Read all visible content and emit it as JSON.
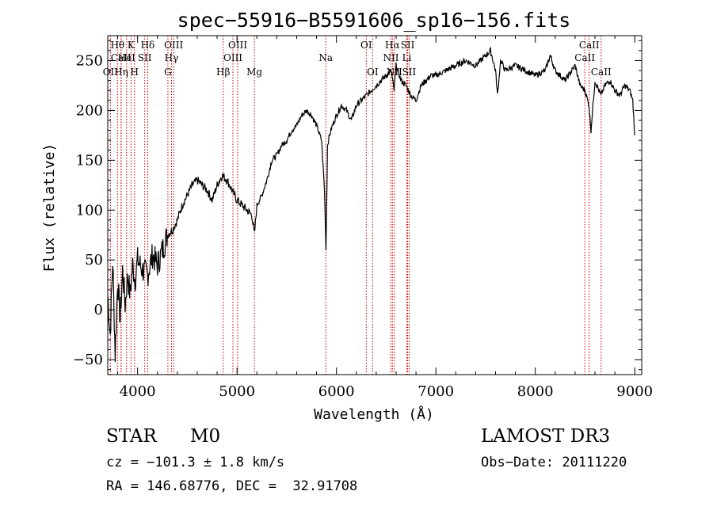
{
  "chart_data": {
    "type": "line",
    "title": "spec−55916−B5591606_sp16−156.fits",
    "xlabel": "Wavelength (Å)",
    "ylabel": "Flux (relative)",
    "xlim": [
      3700,
      9070
    ],
    "ylim": [
      -65,
      275
    ],
    "x_ticks": [
      4000,
      5000,
      6000,
      7000,
      8000,
      9000
    ],
    "y_ticks": [
      -50,
      0,
      50,
      100,
      150,
      200,
      250
    ],
    "series": [
      {
        "name": "flux",
        "x": [
          3700,
          3725,
          3750,
          3775,
          3800,
          3825,
          3850,
          3875,
          3900,
          3925,
          3950,
          3975,
          4000,
          4050,
          4100,
          4150,
          4200,
          4250,
          4300,
          4350,
          4400,
          4450,
          4500,
          4550,
          4600,
          4650,
          4700,
          4750,
          4800,
          4850,
          4900,
          4950,
          5000,
          5050,
          5100,
          5150,
          5175,
          5200,
          5250,
          5300,
          5350,
          5400,
          5450,
          5500,
          5550,
          5600,
          5650,
          5700,
          5750,
          5800,
          5850,
          5880,
          5895,
          5910,
          5930,
          5960,
          6000,
          6050,
          6100,
          6150,
          6200,
          6250,
          6300,
          6350,
          6400,
          6450,
          6500,
          6550,
          6580,
          6600,
          6650,
          6700,
          6750,
          6800,
          6850,
          6900,
          6950,
          7000,
          7100,
          7200,
          7300,
          7400,
          7500,
          7550,
          7600,
          7620,
          7650,
          7700,
          7800,
          7900,
          8000,
          8100,
          8150,
          8200,
          8300,
          8400,
          8450,
          8500,
          8540,
          8560,
          8600,
          8660,
          8700,
          8750,
          8800,
          8850,
          8900,
          8950,
          8980,
          9000
        ],
        "y": [
          15,
          -25,
          50,
          -45,
          30,
          -10,
          40,
          5,
          35,
          15,
          45,
          30,
          50,
          40,
          35,
          55,
          45,
          60,
          75,
          80,
          90,
          105,
          115,
          125,
          130,
          125,
          120,
          110,
          125,
          135,
          130,
          120,
          110,
          105,
          100,
          95,
          75,
          105,
          115,
          130,
          150,
          155,
          165,
          170,
          180,
          185,
          195,
          200,
          195,
          185,
          170,
          120,
          60,
          165,
          175,
          185,
          195,
          205,
          200,
          190,
          205,
          210,
          215,
          220,
          225,
          230,
          235,
          240,
          220,
          245,
          230,
          225,
          215,
          210,
          225,
          230,
          235,
          235,
          240,
          245,
          250,
          245,
          255,
          260,
          240,
          215,
          250,
          240,
          245,
          240,
          235,
          240,
          255,
          240,
          230,
          245,
          225,
          220,
          205,
          180,
          230,
          215,
          225,
          230,
          220,
          215,
          225,
          220,
          210,
          175
        ]
      }
    ],
    "spectral_lines": [
      {
        "label": "Hθ",
        "x": 3798,
        "row": 1
      },
      {
        "label": "CaII",
        "x": 3833,
        "row": 2
      },
      {
        "label": "OII",
        "x": 3727,
        "row": 3
      },
      {
        "label": "Hη",
        "x": 3835,
        "row": 3
      },
      {
        "label": "K",
        "x": 3934,
        "row": 1
      },
      {
        "label": "HeI",
        "x": 3889,
        "row": 2
      },
      {
        "label": "H",
        "x": 3969,
        "row": 3
      },
      {
        "label": "SII",
        "x": 4072,
        "row": 2
      },
      {
        "label": "Hδ",
        "x": 4102,
        "row": 1
      },
      {
        "label": "OIII",
        "x": 4363,
        "row": 1
      },
      {
        "label": "Hγ",
        "x": 4341,
        "row": 2
      },
      {
        "label": "G",
        "x": 4305,
        "row": 3
      },
      {
        "label": "Hβ",
        "x": 4861,
        "row": 3
      },
      {
        "label": "OIII",
        "x": 5007,
        "row": 1
      },
      {
        "label": "OIII",
        "x": 4959,
        "row": 2
      },
      {
        "label": "Mg",
        "x": 5175,
        "row": 3
      },
      {
        "label": "Na",
        "x": 5893,
        "row": 2
      },
      {
        "label": "OI",
        "x": 6300,
        "row": 1
      },
      {
        "label": "OI",
        "x": 6364,
        "row": 3
      },
      {
        "label": "Hα",
        "x": 6563,
        "row": 1
      },
      {
        "label": "NII",
        "x": 6548,
        "row": 2
      },
      {
        "label": "NII",
        "x": 6583,
        "row": 3
      },
      {
        "label": "SII",
        "x": 6716,
        "row": 1
      },
      {
        "label": "Li",
        "x": 6708,
        "row": 2
      },
      {
        "label": "SII",
        "x": 6731,
        "row": 3
      },
      {
        "label": "CaII",
        "x": 8542,
        "row": 1
      },
      {
        "label": "CaII",
        "x": 8498,
        "row": 2
      },
      {
        "label": "CaII",
        "x": 8662,
        "row": 3
      }
    ],
    "grid": false,
    "line_color": "#000000",
    "marker_color": "#cc0000"
  },
  "info": {
    "class_label": "STAR",
    "subclass": "M0",
    "survey": "LAMOST DR3",
    "redshift": "cz = −101.3 ± 1.8 km/s",
    "obs_date": "Obs−Date: 20111220",
    "coords": "RA = 146.68776, DEC =  32.91708"
  }
}
